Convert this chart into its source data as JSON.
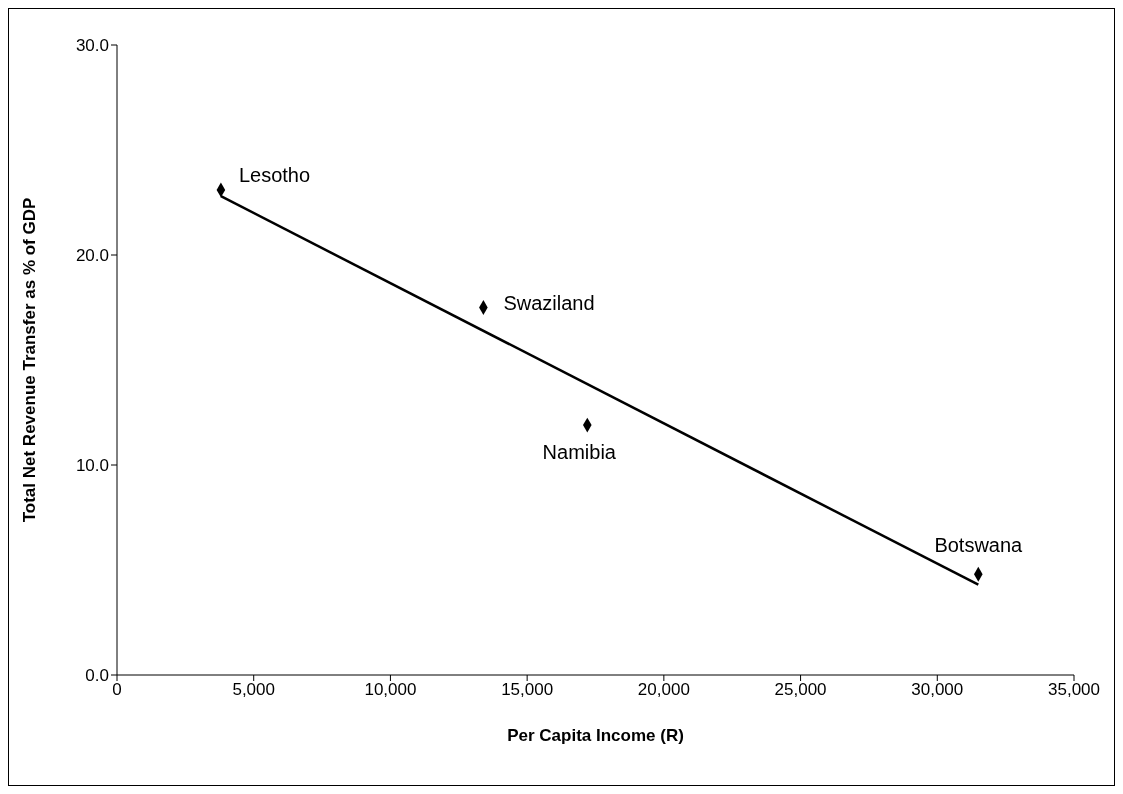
{
  "chart_data": {
    "type": "scatter",
    "xlabel": "Per Capita Income (R)",
    "ylabel": "Total Net Revenue Transfer as % of GDP",
    "x": [
      3800,
      13400,
      17200,
      31500
    ],
    "series": [
      {
        "color": "#000000",
        "marker": "diamond",
        "values": [
          23.1,
          17.5,
          11.9,
          4.8
        ]
      },
      {
        "type": "line",
        "color": "#000000",
        "x": [
          3800,
          31500
        ],
        "values": [
          22.8,
          4.3
        ],
        "marker": "none",
        "line_style": "solid"
      }
    ],
    "annotations": [
      {
        "text": "Lesotho",
        "x": 3800,
        "y": 23.1
      },
      {
        "text": "Swaziland",
        "x": 13400,
        "y": 17.5
      },
      {
        "text": "Namibia",
        "x": 17200,
        "y": 11.9
      },
      {
        "text": "Botswana",
        "x": 31500,
        "y": 4.8
      }
    ],
    "xlim": [
      0,
      35000
    ],
    "xticks": [
      0,
      {
        "value": 5000,
        "label": "5,000"
      },
      {
        "value": 10000,
        "label": "10,000"
      },
      {
        "value": 15000,
        "label": "15,000"
      },
      {
        "value": 20000,
        "label": "20,000"
      },
      {
        "value": 25000,
        "label": "25,000"
      },
      {
        "value": 30000,
        "label": "30,000"
      },
      {
        "value": 35000,
        "label": "35,000"
      }
    ],
    "ylim": [
      0,
      30
    ],
    "yticks": [
      {
        "value": 0,
        "label": "0.0"
      },
      {
        "value": 10,
        "label": "10.0"
      },
      {
        "value": 20,
        "label": "20.0"
      },
      {
        "value": 30,
        "label": "30.0"
      }
    ],
    "grid": false
  }
}
